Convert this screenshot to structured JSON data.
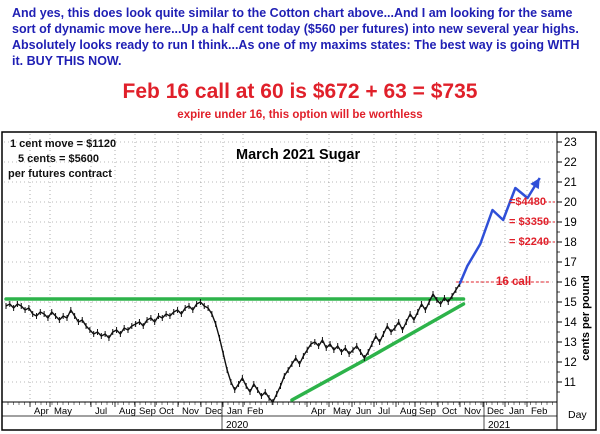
{
  "commentary": {
    "intro": "And yes, this does look quite similar to the Cotton chart above...And I am looking for the same sort of dynamic move here...Up a half cent today ($560 per futures) into new several year highs. Absolutely looks ready to run I think...As one of my maxims states: The best way is going WITH it. BUY THIS NOW.",
    "headline": "Feb 16 call at 60 is $672 + 63 = $735",
    "subline": "expire under 16, this option will be worthless"
  },
  "notes": {
    "line1": "1 cent move = $1120",
    "line2": "5 cents = $5600",
    "line3": "per futures contract"
  },
  "colors": {
    "price": "#111111",
    "trendline": "#2db34a",
    "projection": "#2f4fd8",
    "annotation": "#e0202a",
    "frame": "#000000"
  },
  "chart_data": {
    "type": "line",
    "title": "March 2021 Sugar",
    "ylabel": "cents per pound",
    "xlabel": "Day",
    "ylim": [
      10,
      23
    ],
    "y_ticks": [
      11,
      12,
      13,
      14,
      15,
      16,
      17,
      18,
      19,
      20,
      21,
      22,
      23
    ],
    "x_tick_labels": [
      "Apr",
      "May",
      "Jul",
      "Aug",
      "Sep",
      "Oct",
      "Nov",
      "Dec",
      "Jan",
      "Feb",
      "Apr",
      "May",
      "Jun",
      "Jul",
      "Aug",
      "Sep",
      "Oct",
      "Nov",
      "Dec",
      "Jan",
      "Feb"
    ],
    "x_year_labels": [
      "2020",
      "2021"
    ],
    "grid": true,
    "series": [
      {
        "style": "price",
        "x": [
          0,
          5,
          10,
          15,
          20,
          25,
          30,
          35,
          40,
          45,
          50,
          55,
          60,
          65,
          70,
          75,
          80,
          85,
          90,
          95,
          100,
          105,
          110,
          115,
          120,
          125,
          130,
          135,
          140,
          145,
          150,
          155,
          160,
          165,
          170,
          175,
          180,
          185,
          190,
          195,
          200,
          205,
          210,
          215,
          220,
          225,
          230,
          235,
          240,
          245,
          250,
          255,
          260,
          265,
          270,
          275,
          280,
          285,
          290,
          295,
          300,
          305,
          310,
          315,
          320,
          325,
          330,
          335,
          340,
          345,
          350,
          355,
          360,
          365,
          370,
          375,
          380,
          385,
          390,
          395,
          400,
          405,
          410,
          415,
          420,
          425,
          430,
          435,
          440,
          445,
          450,
          455,
          460,
          465,
          470,
          475,
          480,
          485,
          490,
          495,
          500,
          505,
          510,
          515,
          520,
          525,
          530,
          535,
          540,
          545,
          550,
          555,
          560,
          565,
          570,
          575,
          580,
          585,
          590,
          595
        ],
        "y": [
          14.8,
          14.9,
          14.7,
          14.9,
          14.8,
          14.6,
          14.7,
          14.4,
          14.3,
          14.5,
          14.4,
          14.2,
          14.5,
          14.3,
          14.1,
          14.3,
          14.2,
          14.6,
          14.3,
          14.0,
          14.1,
          13.8,
          13.6,
          13.4,
          13.5,
          13.3,
          13.4,
          13.2,
          13.5,
          13.6,
          13.4,
          13.7,
          13.6,
          13.8,
          13.9,
          14.0,
          13.8,
          14.1,
          14.2,
          14.0,
          14.3,
          14.2,
          14.4,
          14.3,
          14.5,
          14.6,
          14.4,
          14.7,
          14.8,
          14.6,
          14.9,
          15.0,
          14.8,
          14.7,
          14.4,
          13.9,
          13.2,
          12.4,
          11.6,
          11.0,
          10.6,
          10.9,
          11.2,
          10.8,
          10.5,
          10.9,
          10.6,
          10.3,
          10.5,
          10.2,
          10.0,
          10.4,
          10.8,
          11.3,
          11.6,
          11.9,
          12.2,
          11.9,
          12.3,
          12.6,
          12.9,
          13.0,
          12.8,
          13.1,
          12.7,
          12.9,
          12.6,
          12.8,
          12.5,
          12.7,
          12.4,
          12.6,
          12.8,
          12.5,
          12.2,
          12.5,
          12.9,
          13.3,
          13.0,
          13.4,
          13.8,
          13.5,
          13.7,
          14.0,
          13.6,
          14.0,
          14.4,
          14.1,
          14.5,
          14.9,
          14.6,
          15.0,
          15.4,
          15.1,
          14.9,
          15.2,
          15.0,
          15.3,
          15.6,
          15.9
        ]
      },
      {
        "style": "projection",
        "x": [
          595,
          605,
          622,
          638,
          652,
          668,
          684,
          700
        ],
        "y": [
          15.9,
          16.8,
          17.9,
          19.6,
          19.1,
          20.7,
          20.2,
          21.2
        ]
      }
    ],
    "trendlines": [
      {
        "label": "resistance",
        "x": [
          0,
          600
        ],
        "y": [
          15.15,
          15.15
        ]
      },
      {
        "label": "support",
        "x": [
          375,
          480,
          600
        ],
        "y": [
          10.1,
          12.3,
          14.9
        ]
      }
    ],
    "reference_lines": [
      {
        "label": "16 call",
        "y": 16
      }
    ],
    "annotations": [
      {
        "text": "=$4480",
        "y": 20
      },
      {
        "text": "= $3350",
        "y": 19
      },
      {
        "text": "= $2240",
        "y": 18
      }
    ]
  }
}
